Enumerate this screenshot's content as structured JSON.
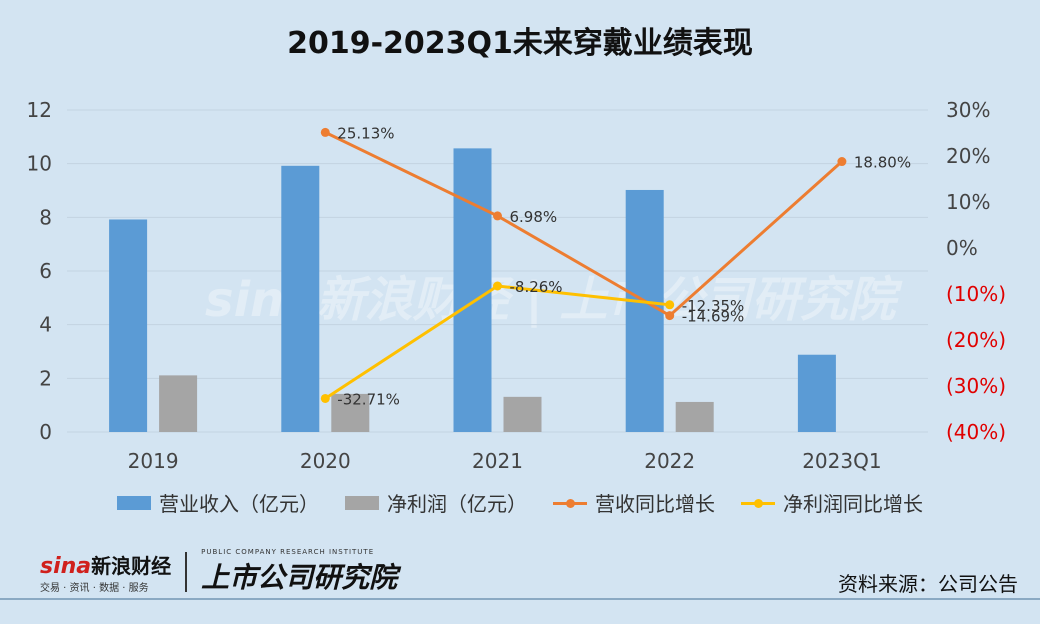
{
  "title": "2019-2023Q1未来穿戴业绩表现",
  "chart_data": {
    "type": "bar",
    "categories": [
      "2019",
      "2020",
      "2021",
      "2022",
      "2023Q1"
    ],
    "series": [
      {
        "name": "营业收入（亿元）",
        "type": "bar",
        "axis": "left",
        "color": "#5b9bd5",
        "values": [
          7.92,
          9.92,
          10.57,
          9.02,
          2.88
        ]
      },
      {
        "name": "净利润（亿元）",
        "type": "bar",
        "axis": "left",
        "color": "#a5a5a5",
        "values": [
          2.11,
          1.42,
          1.31,
          1.12,
          null
        ]
      },
      {
        "name": "营收同比增长",
        "type": "line",
        "axis": "right",
        "color": "#ed7d31",
        "values": [
          null,
          25.13,
          6.98,
          -14.69,
          18.8
        ],
        "labels": [
          "",
          "25.13%",
          "6.98%",
          "-14.69%",
          "18.80%"
        ]
      },
      {
        "name": "净利润同比增长",
        "type": "line",
        "axis": "right",
        "color": "#ffc000",
        "values": [
          null,
          -32.71,
          -8.26,
          -12.35,
          null
        ],
        "labels": [
          "",
          "-32.71%",
          "-8.26%",
          "-12.35%",
          ""
        ]
      }
    ],
    "ylim_left": [
      0,
      12
    ],
    "yticks_left": [
      "0",
      "2",
      "4",
      "6",
      "8",
      "10",
      "12"
    ],
    "ylim_right": [
      -40,
      30
    ],
    "yticks_right": [
      "(40%)",
      "(30%)",
      "(20%)",
      "(10%)",
      "0%",
      "10%",
      "20%",
      "30%"
    ],
    "negative_tick_color": "#e00000",
    "grid": true,
    "legend": "bottom"
  },
  "watermark": "sina新浪财经 | 上市公司研究院",
  "footer": {
    "sina": "sina",
    "sina_cn": "新浪财经",
    "sina_sub": "交易 · 资讯 · 数据 · 服务",
    "institute": "上市公司研究院",
    "institute_en": "PUBLIC COMPANY RESEARCH INSTITUTE",
    "source": "资料来源：公司公告"
  }
}
